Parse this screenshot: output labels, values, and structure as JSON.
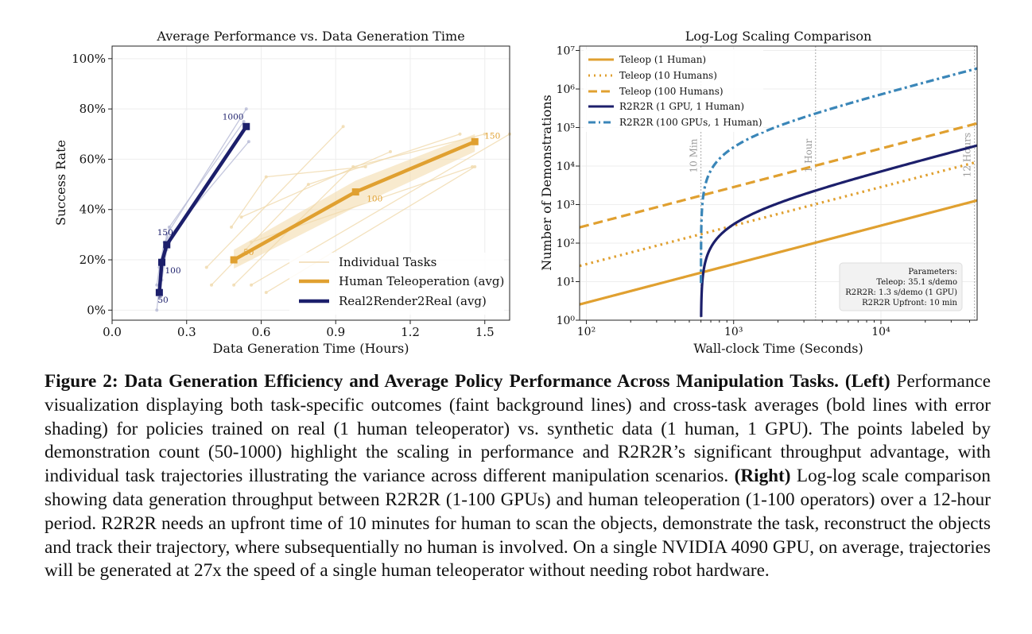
{
  "left_chart": {
    "title": "Average Performance vs. Data Generation Time",
    "xlabel": "Data Generation Time (Hours)",
    "ylabel": "Success Rate",
    "xticks": [
      "0.0",
      "0.3",
      "0.6",
      "0.9",
      "1.2",
      "1.5"
    ],
    "yticks": [
      "0%",
      "20%",
      "40%",
      "60%",
      "80%",
      "100%"
    ],
    "legend": [
      "Individual Tasks",
      "Human Teleoperation (avg)",
      "Real2Render2Real (avg)"
    ]
  },
  "right_chart": {
    "title": "Log-Log Scaling Comparison",
    "xlabel": "Wall-clock Time (Seconds)",
    "ylabel": "Number of Demonstrations",
    "xticks": [
      "10²",
      "10³",
      "10⁴"
    ],
    "yticks": [
      "10⁰",
      "10¹",
      "10²",
      "10³",
      "10⁴",
      "10⁵",
      "10⁶",
      "10⁷"
    ],
    "legend": [
      "Teleop (1 Human)",
      "Teleop (10 Humans)",
      "Teleop (100 Humans)",
      "R2R2R (1 GPU, 1 Human)",
      "R2R2R (100 GPUs, 1 Human)"
    ],
    "vlines": [
      "10 Min",
      "1 Hour",
      "12 Hours"
    ],
    "params": [
      "Parameters:",
      "Teleop: 35.1 s/demo",
      "R2R2R: 1.3 s/demo (1 GPU)",
      "R2R2R Upfront: 10 min"
    ]
  },
  "caption": {
    "fig_label": "Figure 2: Data Generation Efficiency and Average Policy Performance Across Manipulation Tasks.",
    "left_label": "(Left)",
    "left_text": "Performance visualization displaying both task-specific outcomes (faint background lines) and cross-task averages (bold lines with error shading) for policies trained on real (1 human teleoperator) vs. synthetic data (1 human, 1 GPU). The points labeled by demonstration count (50-1000) highlight the scaling in performance and R2R2R’s significant throughput advantage, with individual task trajectories illustrating the variance across different manipulation scenarios.",
    "right_label": "(Right)",
    "right_text": "Log-log scale comparison showing data generation throughput between R2R2R (1-100 GPUs) and human teleoperation (1-100 operators) over a 12-hour period.  R2R2R needs an upfront time of 10 minutes for human to scan the objects, demonstrate the task, reconstruct the objects and track their trajectory, where subsequentially no human is involved. On a single NVIDIA 4090 GPU, on average, trajectories will be generated at  27x the speed of a single human teleoperator without needing robot hardware."
  },
  "chart_data": [
    {
      "type": "line",
      "title": "Average Performance vs. Data Generation Time",
      "xlabel": "Data Generation Time (Hours)",
      "ylabel": "Success Rate",
      "xlim": [
        0.0,
        1.6
      ],
      "ylim": [
        -0.04,
        1.05
      ],
      "grid": true,
      "legend_position": "bottom-right",
      "colors": {
        "teleop": "#e0a030",
        "r2r2r": "#1c1f6b",
        "teleop_faint": "#f0d9ad",
        "r2r2r_faint": "#b7bad6"
      },
      "series": [
        {
          "name": "Human Teleoperation (avg)",
          "x": [
            0.49,
            0.98,
            1.46
          ],
          "y": [
            0.2,
            0.47,
            0.67
          ],
          "labels": [
            "50",
            "100",
            "150"
          ]
        },
        {
          "name": "Real2Render2Real (avg)",
          "x": [
            0.19,
            0.2,
            0.22,
            0.54
          ],
          "y": [
            0.07,
            0.19,
            0.26,
            0.73
          ],
          "labels": [
            "50",
            "100",
            "150",
            "1000"
          ]
        }
      ],
      "individual_tasks_teleop": [
        [
          [
            0.4,
            0.1
          ],
          [
            0.79,
            0.5
          ],
          [
            1.4,
            0.7
          ]
        ],
        [
          [
            0.49,
            0.1
          ],
          [
            0.97,
            0.57
          ],
          [
            1.5,
            0.7
          ]
        ],
        [
          [
            0.38,
            0.17
          ],
          [
            0.93,
            0.73
          ]
        ],
        [
          [
            0.52,
            0.37
          ],
          [
            1.12,
            0.63
          ]
        ],
        [
          [
            0.48,
            0.33
          ],
          [
            0.62,
            0.53
          ],
          [
            1.02,
            0.57
          ]
        ],
        [
          [
            0.56,
            0.27
          ],
          [
            1.45,
            0.57
          ]
        ],
        [
          [
            0.62,
            0.07
          ],
          [
            1.46,
            0.57
          ]
        ],
        [
          [
            0.56,
            0.1
          ],
          [
            1.6,
            0.7
          ]
        ]
      ],
      "individual_tasks_r2r2r": [
        [
          [
            0.18,
            0.0
          ],
          [
            0.2,
            0.2
          ],
          [
            0.22,
            0.3
          ],
          [
            0.54,
            0.8
          ]
        ],
        [
          [
            0.19,
            0.05
          ],
          [
            0.21,
            0.23
          ],
          [
            0.23,
            0.33
          ],
          [
            0.53,
            0.75
          ]
        ],
        [
          [
            0.18,
            0.1
          ],
          [
            0.19,
            0.17
          ],
          [
            0.21,
            0.27
          ],
          [
            0.55,
            0.67
          ]
        ],
        [
          [
            0.2,
            0.12
          ],
          [
            0.22,
            0.24
          ],
          [
            0.23,
            0.27
          ],
          [
            0.52,
            0.7
          ]
        ]
      ]
    },
    {
      "type": "line",
      "title": "Log-Log Scaling Comparison",
      "xlabel": "Wall-clock Time (Seconds)",
      "ylabel": "Number of Demonstrations",
      "xscale": "log",
      "yscale": "log",
      "xlim": [
        90,
        45000
      ],
      "ylim": [
        1,
        13000000
      ],
      "grid": true,
      "legend_position": "top-left",
      "vlines_seconds": [
        600,
        3600,
        43200
      ],
      "series": [
        {
          "name": "Teleop (1 Human)",
          "seconds_per_demo": 35.1,
          "workers": 1,
          "upfront_seconds": 0,
          "style": "solid",
          "color": "#e0a030"
        },
        {
          "name": "Teleop (10 Humans)",
          "seconds_per_demo": 35.1,
          "workers": 10,
          "upfront_seconds": 0,
          "style": "dotted",
          "color": "#e0a030"
        },
        {
          "name": "Teleop (100 Humans)",
          "seconds_per_demo": 35.1,
          "workers": 100,
          "upfront_seconds": 0,
          "style": "dashed",
          "color": "#e0a030"
        },
        {
          "name": "R2R2R (1 GPU, 1 Human)",
          "seconds_per_demo": 1.3,
          "workers": 1,
          "upfront_seconds": 600,
          "style": "solid",
          "color": "#1c1f6b"
        },
        {
          "name": "R2R2R (100 GPUs, 1 Human)",
          "seconds_per_demo": 1.3,
          "workers": 100,
          "upfront_seconds": 600,
          "style": "dashdot",
          "color": "#3a86b8"
        }
      ]
    }
  ]
}
